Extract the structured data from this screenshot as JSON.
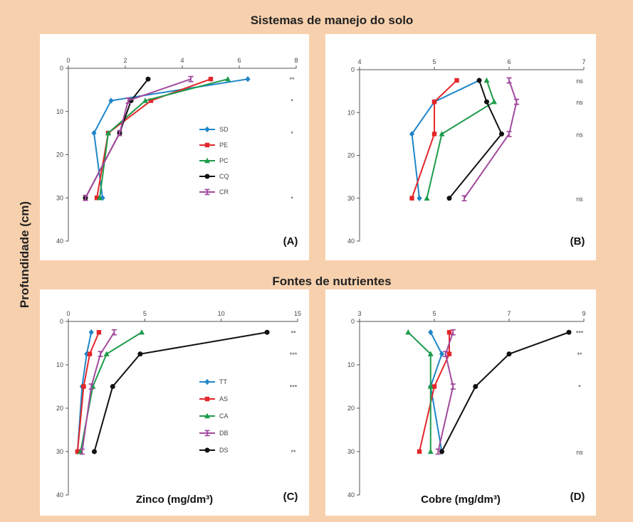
{
  "section_titles": {
    "top": "Sistemas de manejo do solo",
    "bottom": "Fontes de nutrientes"
  },
  "y_axis_label": "Profundidade (cm)",
  "colors": {
    "page_background": "#f7d1ae",
    "panel_background": "#ffffff"
  },
  "chart_data": [
    {
      "id": "A",
      "type": "line",
      "panel_label": "(A)",
      "xlabel": "",
      "ylabel": "Profundidade (cm)",
      "xlim": [
        0,
        8
      ],
      "xticks": [
        0,
        2,
        4,
        6,
        8
      ],
      "ylim": [
        0,
        40
      ],
      "yticks": [
        0,
        10,
        20,
        30,
        40
      ],
      "y_inverted": true,
      "x_axis_position": "top",
      "depths": [
        2.5,
        7.5,
        15,
        30
      ],
      "legend": {
        "position": "right-middle"
      },
      "significance": [
        {
          "depth": 2.5,
          "label": "**"
        },
        {
          "depth": 7.5,
          "label": "*"
        },
        {
          "depth": 15,
          "label": "*"
        },
        {
          "depth": 30,
          "label": "*"
        }
      ],
      "series": [
        {
          "name": "SD",
          "color": "#1f86c8",
          "marker": "diamond",
          "values": [
            6.3,
            1.5,
            0.9,
            1.2
          ]
        },
        {
          "name": "PE",
          "color": "#e3262a",
          "marker": "square",
          "values": [
            5.0,
            2.9,
            1.4,
            1.0
          ]
        },
        {
          "name": "PC",
          "color": "#1e9b4b",
          "marker": "triangle",
          "values": [
            5.6,
            2.7,
            1.4,
            1.1
          ]
        },
        {
          "name": "CQ",
          "color": "#111111",
          "marker": "circle",
          "values": [
            2.8,
            2.2,
            1.8,
            0.6
          ]
        },
        {
          "name": "CR",
          "color": "#a24a9e",
          "marker": "ibar",
          "values": [
            4.3,
            2.1,
            1.8,
            0.6
          ]
        }
      ]
    },
    {
      "id": "B",
      "type": "line",
      "panel_label": "(B)",
      "xlabel": "",
      "ylabel": "",
      "xlim": [
        4,
        7
      ],
      "xticks": [
        4,
        5,
        6,
        7
      ],
      "ylim": [
        0,
        40
      ],
      "yticks": [
        0,
        10,
        20,
        30,
        40
      ],
      "y_inverted": true,
      "x_axis_position": "top",
      "depths": [
        2.5,
        7.5,
        15,
        30
      ],
      "significance": [
        {
          "depth": 2.5,
          "label": "ns"
        },
        {
          "depth": 7.5,
          "label": "ns"
        },
        {
          "depth": 15,
          "label": "ns"
        },
        {
          "depth": 30,
          "label": "ns"
        }
      ],
      "series": [
        {
          "name": "SD",
          "color": "#1f86c8",
          "marker": "diamond",
          "values": [
            5.6,
            5.0,
            4.7,
            4.8
          ]
        },
        {
          "name": "PE",
          "color": "#e3262a",
          "marker": "square",
          "values": [
            5.3,
            5.0,
            5.0,
            4.7
          ]
        },
        {
          "name": "PC",
          "color": "#1e9b4b",
          "marker": "triangle",
          "values": [
            5.7,
            5.8,
            5.1,
            4.9
          ]
        },
        {
          "name": "CQ",
          "color": "#111111",
          "marker": "circle",
          "values": [
            5.6,
            5.7,
            5.9,
            5.2
          ]
        },
        {
          "name": "CR",
          "color": "#a24a9e",
          "marker": "ibar",
          "values": [
            6.0,
            6.1,
            6.0,
            5.4
          ]
        }
      ]
    },
    {
      "id": "C",
      "type": "line",
      "panel_label": "(C)",
      "xlabel": "Zinco (mg/dm³)",
      "ylabel": "Profundidade (cm)",
      "xlim": [
        0,
        15
      ],
      "xticks": [
        0,
        5,
        10,
        15
      ],
      "ylim": [
        0,
        40
      ],
      "yticks": [
        0,
        10,
        20,
        30,
        40
      ],
      "y_inverted": true,
      "x_axis_position": "top",
      "depths": [
        2.5,
        7.5,
        15,
        30
      ],
      "legend": {
        "position": "right-middle"
      },
      "significance": [
        {
          "depth": 2.5,
          "label": "**"
        },
        {
          "depth": 7.5,
          "label": "***"
        },
        {
          "depth": 15,
          "label": "***"
        },
        {
          "depth": 30,
          "label": "**"
        }
      ],
      "series": [
        {
          "name": "TT",
          "color": "#1f86c8",
          "marker": "diamond",
          "values": [
            1.5,
            1.2,
            0.9,
            0.6
          ]
        },
        {
          "name": "AS",
          "color": "#e3262a",
          "marker": "square",
          "values": [
            2.0,
            1.4,
            1.0,
            0.6
          ]
        },
        {
          "name": "CA",
          "color": "#1e9b4b",
          "marker": "triangle",
          "values": [
            4.8,
            2.5,
            1.6,
            0.8
          ]
        },
        {
          "name": "DB",
          "color": "#a24a9e",
          "marker": "ibar",
          "values": [
            3.0,
            2.1,
            1.5,
            0.9
          ]
        },
        {
          "name": "DS",
          "color": "#111111",
          "marker": "circle",
          "values": [
            13.0,
            4.7,
            2.9,
            1.7
          ]
        }
      ]
    },
    {
      "id": "D",
      "type": "line",
      "panel_label": "(D)",
      "xlabel": "Cobre (mg/dm³)",
      "ylabel": "",
      "xlim": [
        3,
        9
      ],
      "xticks": [
        3,
        5,
        7,
        9
      ],
      "ylim": [
        0,
        40
      ],
      "yticks": [
        0,
        10,
        20,
        30,
        40
      ],
      "y_inverted": true,
      "x_axis_position": "top",
      "depths": [
        2.5,
        7.5,
        15,
        30
      ],
      "significance": [
        {
          "depth": 2.5,
          "label": "***"
        },
        {
          "depth": 7.5,
          "label": "**"
        },
        {
          "depth": 15,
          "label": "*"
        },
        {
          "depth": 30,
          "label": "ns"
        }
      ],
      "series": [
        {
          "name": "TT",
          "color": "#1f86c8",
          "marker": "diamond",
          "values": [
            4.9,
            5.2,
            4.9,
            5.2
          ]
        },
        {
          "name": "AS",
          "color": "#e3262a",
          "marker": "square",
          "values": [
            5.4,
            5.4,
            5.0,
            4.6
          ]
        },
        {
          "name": "CA",
          "color": "#1e9b4b",
          "marker": "triangle",
          "values": [
            4.3,
            4.9,
            4.9,
            4.9
          ]
        },
        {
          "name": "DB",
          "color": "#a24a9e",
          "marker": "ibar",
          "values": [
            5.5,
            5.3,
            5.5,
            5.1
          ]
        },
        {
          "name": "DS",
          "color": "#111111",
          "marker": "circle",
          "values": [
            8.6,
            7.0,
            6.1,
            5.2
          ]
        }
      ]
    }
  ]
}
